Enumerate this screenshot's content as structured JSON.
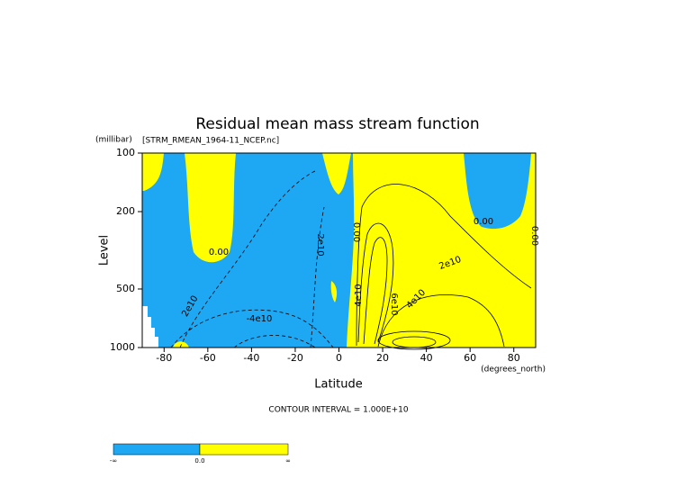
{
  "chart_data": {
    "type": "contour",
    "title": "Residual mean mass stream function",
    "subtitle": "[STRM_RMEAN_1964-11_NCEP.nc]",
    "y_unit": "(millibar)",
    "x_unit": "(degrees_north)",
    "y_label": "Level",
    "x_label": "Latitude",
    "xlim": [
      -90,
      90
    ],
    "xticks": [
      -80,
      -60,
      -40,
      -20,
      0,
      20,
      40,
      60,
      80
    ],
    "ylim": [
      1000,
      100
    ],
    "yticks": [
      100,
      200,
      500,
      1000
    ],
    "y_log": true,
    "contour_labels": [
      "0.00",
      "0.00",
      "0.00",
      "0.00",
      "2e10",
      "2e10",
      "-4e10",
      "4e10",
      "6e10",
      "4e10",
      "2e10"
    ],
    "footnote": "CONTOUR INTERVAL = 1.000E+10",
    "colorbar": {
      "labels": [
        "-∞",
        "0.0",
        "∞"
      ],
      "colors": [
        "#1ea8f4",
        "#ffff00"
      ]
    }
  }
}
